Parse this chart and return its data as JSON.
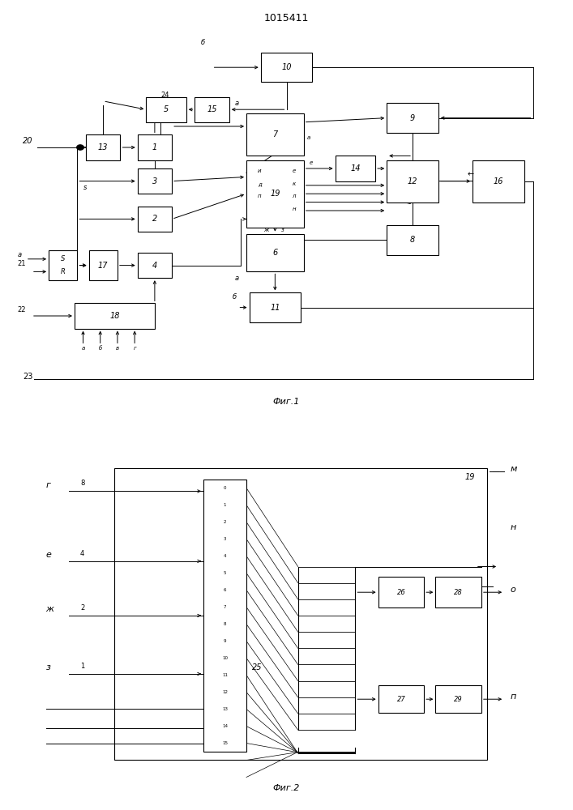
{
  "title": "1015411",
  "fig1_label": "Фиг.1",
  "fig2_label": "Фиг.2",
  "bg": "#ffffff"
}
